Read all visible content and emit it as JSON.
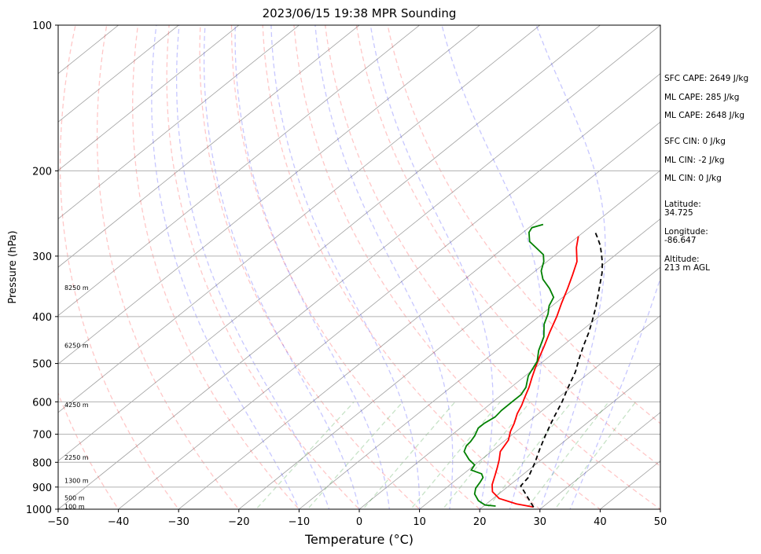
{
  "chart_data": {
    "type": "line",
    "subtype": "skew-t log-p",
    "title": "2023/06/15 19:38 MPR Sounding",
    "xlabel": "Temperature (°C)",
    "ylabel": "Pressure (hPa)",
    "xlim": [
      -50,
      50
    ],
    "ylim": [
      1000,
      100
    ],
    "y_scale": "log",
    "x_ticks": [
      -50,
      -40,
      -30,
      -20,
      -10,
      0,
      10,
      20,
      30,
      40,
      50
    ],
    "x_tick_labels": [
      "−50",
      "−40",
      "−30",
      "−20",
      "−10",
      "0",
      "10",
      "20",
      "30",
      "40",
      "50"
    ],
    "y_ticks": [
      1000,
      900,
      800,
      700,
      600,
      500,
      400,
      300,
      200,
      100
    ],
    "y_tick_labels": [
      "1000",
      "900",
      "800",
      "700",
      "600",
      "500",
      "400",
      "300",
      "200",
      "100"
    ],
    "grid": true,
    "series": [
      {
        "role": "temperature",
        "color": "#ff0000",
        "points": [
          [
            28.5,
            990
          ],
          [
            25,
            975
          ],
          [
            21,
            950
          ],
          [
            18.5,
            920
          ],
          [
            17,
            890
          ],
          [
            15.5,
            850
          ],
          [
            14.3,
            820
          ],
          [
            13,
            790
          ],
          [
            11.5,
            760
          ],
          [
            10.5,
            720
          ],
          [
            9,
            690
          ],
          [
            8,
            665
          ],
          [
            6.5,
            635
          ],
          [
            5.5,
            610
          ],
          [
            4.5,
            590
          ],
          [
            3,
            560
          ],
          [
            1.5,
            535
          ],
          [
            0,
            510
          ],
          [
            -1.5,
            485
          ],
          [
            -3,
            460
          ],
          [
            -5,
            430
          ],
          [
            -7,
            400
          ],
          [
            -9,
            375
          ],
          [
            -11,
            350
          ],
          [
            -13,
            328
          ],
          [
            -15,
            308
          ],
          [
            -18,
            288
          ],
          [
            -20,
            273
          ]
        ]
      },
      {
        "role": "dewpoint",
        "color": "#008000",
        "points": [
          [
            22,
            985
          ],
          [
            20,
            980
          ],
          [
            18,
            960
          ],
          [
            16,
            930
          ],
          [
            15,
            905
          ],
          [
            14.5,
            880
          ],
          [
            14,
            860
          ],
          [
            13,
            845
          ],
          [
            10.5,
            830
          ],
          [
            10,
            810
          ],
          [
            8,
            790
          ],
          [
            5.5,
            760
          ],
          [
            4.7,
            740
          ],
          [
            4.5,
            725
          ],
          [
            4,
            705
          ],
          [
            3,
            680
          ],
          [
            3,
            665
          ],
          [
            3.5,
            645
          ],
          [
            3.2,
            625
          ],
          [
            3.2,
            600
          ],
          [
            3.2,
            580
          ],
          [
            2.5,
            560
          ],
          [
            0.5,
            530
          ],
          [
            -1,
            495
          ],
          [
            -3,
            470
          ],
          [
            -5,
            440
          ],
          [
            -7.5,
            415
          ],
          [
            -9,
            395
          ],
          [
            -10.5,
            380
          ],
          [
            -11.5,
            365
          ],
          [
            -14,
            350
          ],
          [
            -17,
            335
          ],
          [
            -19,
            322
          ],
          [
            -20.5,
            308
          ],
          [
            -22,
            298
          ],
          [
            -25,
            287
          ],
          [
            -27,
            280
          ],
          [
            -29,
            268
          ],
          [
            -29.5,
            262
          ],
          [
            -28.3,
            258
          ]
        ]
      },
      {
        "role": "parcel",
        "color": "#000000",
        "dashed": true,
        "points": [
          [
            28.5,
            990
          ],
          [
            22,
            895
          ],
          [
            21.5,
            860
          ],
          [
            19.5,
            800
          ],
          [
            17.5,
            750
          ],
          [
            15.5,
            700
          ],
          [
            13.5,
            650
          ],
          [
            11.5,
            600
          ],
          [
            9.5,
            560
          ],
          [
            7.5,
            520
          ],
          [
            5.5,
            490
          ],
          [
            3.5,
            460
          ],
          [
            1.5,
            430
          ],
          [
            -0.5,
            405
          ],
          [
            -2.5,
            382
          ],
          [
            -4.5,
            362
          ],
          [
            -6.5,
            343
          ],
          [
            -8.5,
            325
          ],
          [
            -10.5,
            310
          ],
          [
            -12.5,
            297
          ],
          [
            -14.5,
            285
          ],
          [
            -16.5,
            275
          ],
          [
            -18,
            268
          ]
        ]
      }
    ],
    "background_lines": {
      "dry_adiabats": [
        -40,
        -30,
        -20,
        -10,
        0,
        10,
        20,
        30,
        40,
        50,
        60,
        70
      ],
      "dry_adiabat_color": "#ff0000",
      "moist_adiabats": [
        -10,
        -5,
        0,
        5,
        10,
        15,
        20,
        25,
        30,
        35
      ],
      "moist_adiabat_color": "#0000ff",
      "mixing_ratio_lines": [
        1,
        2,
        4,
        7,
        10,
        16,
        24,
        32
      ],
      "mixing_ratio_color": "#008000",
      "isotherm_color": "#888888"
    },
    "height_labels": [
      {
        "text": "100 m",
        "pressure": 990
      },
      {
        "text": "500 m",
        "pressure": 950
      },
      {
        "text": "1300 m",
        "pressure": 875
      },
      {
        "text": "2250 m",
        "pressure": 785
      },
      {
        "text": "4250 m",
        "pressure": 610
      },
      {
        "text": "6250 m",
        "pressure": 460
      },
      {
        "text": "8250 m",
        "pressure": 350
      }
    ]
  },
  "stats": {
    "sfc_cape": "SFC CAPE: 2649 J/kg",
    "ml_cape_1": "ML CAPE: 285 J/kg",
    "ml_cape_2": "ML CAPE: 2648 J/kg",
    "sfc_cin": "SFC CIN: 0 J/kg",
    "ml_cin_1": "ML CIN: -2 J/kg",
    "ml_cin_2": "ML CIN: 0 J/kg",
    "latitude": "Latitude:\n34.725",
    "longitude": "Longitude:\n-86.647",
    "altitude": "Altitude:\n213 m AGL"
  }
}
